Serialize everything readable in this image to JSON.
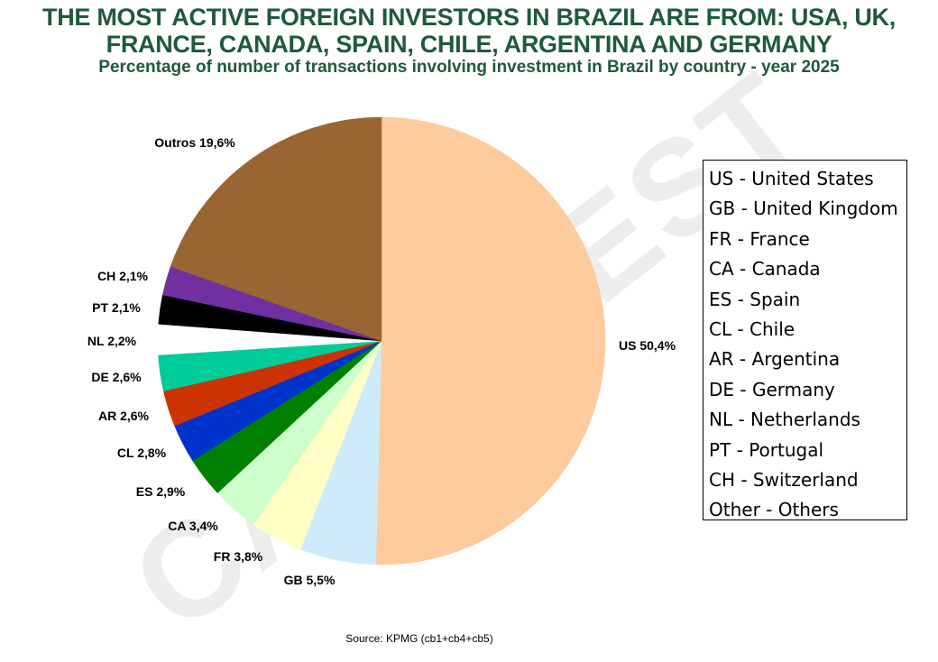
{
  "header": {
    "title_line1": "THE MOST ACTIVE FOREIGN INVESTORS IN BRAZIL ARE FROM: USA, UK,",
    "title_line2": "FRANCE, CANADA, SPAIN, CHILE, ARGENTINA AND GERMANY",
    "subtitle": "Percentage of number of transactions involving investment in Brazil by country - year 2025"
  },
  "watermark": "CAPINVEST",
  "source": "Source: KPMG (cb1+cb4+cb5)",
  "chart_data": {
    "type": "pie",
    "start_angle_deg": 0,
    "direction": "clockwise",
    "slices": [
      {
        "code": "US",
        "value": 50.4,
        "label": "US 50,4%",
        "color": "#FDCB9C"
      },
      {
        "code": "GB",
        "value": 5.5,
        "label": "GB 5,5%",
        "color": "#CDEBFA"
      },
      {
        "code": "FR",
        "value": 3.8,
        "label": "FR 3,8%",
        "color": "#FFFFC6"
      },
      {
        "code": "CA",
        "value": 3.4,
        "label": "CA 3,4%",
        "color": "#CCFFCC"
      },
      {
        "code": "ES",
        "value": 2.9,
        "label": "ES 2,9%",
        "color": "#008000"
      },
      {
        "code": "CL",
        "value": 2.8,
        "label": "CL 2,8%",
        "color": "#0033CC"
      },
      {
        "code": "AR",
        "value": 2.6,
        "label": "AR 2,6%",
        "color": "#CC3300"
      },
      {
        "code": "DE",
        "value": 2.6,
        "label": "DE 2,6%",
        "color": "#00CC99"
      },
      {
        "code": "NL",
        "value": 2.2,
        "label": "NL 2,2%",
        "color": "#FFFFFF"
      },
      {
        "code": "PT",
        "value": 2.1,
        "label": "PT 2,1%",
        "color": "#000000"
      },
      {
        "code": "CH",
        "value": 2.1,
        "label": "CH 2,1%",
        "color": "#7030A0"
      },
      {
        "code": "Outros",
        "value": 19.6,
        "label": "Outros 19,6%",
        "color": "#996633"
      }
    ]
  },
  "legend": {
    "items": [
      "US - United States",
      "GB - United Kingdom",
      "FR - France",
      "CA - Canada",
      "ES - Spain",
      "CL - Chile",
      "AR - Argentina",
      "DE - Germany",
      "NL - Netherlands",
      "PT - Portugal",
      "CH - Switzerland",
      "Other - Others"
    ]
  }
}
